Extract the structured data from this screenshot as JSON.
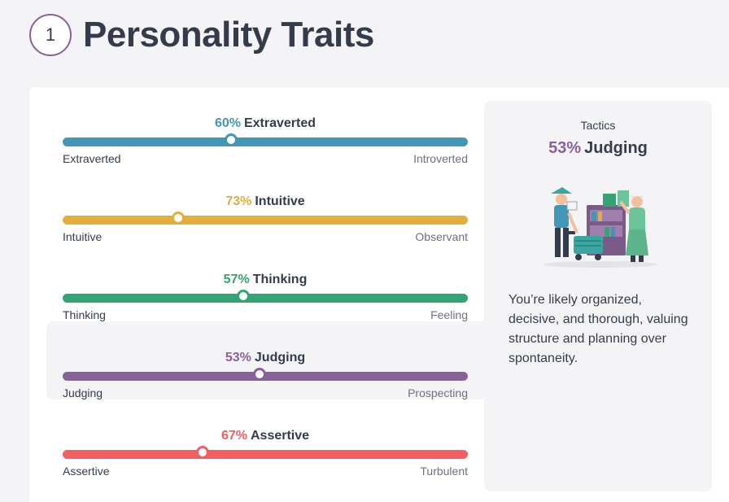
{
  "header": {
    "step": "1",
    "title": "Personality Traits"
  },
  "traits": [
    {
      "percent_label": "60%",
      "name": "Extraverted",
      "left": "Extraverted",
      "right": "Introverted",
      "color": "#4298b4",
      "knob_fraction": 0.415,
      "active": false
    },
    {
      "percent_label": "73%",
      "name": "Intuitive",
      "left": "Intuitive",
      "right": "Observant",
      "color": "#e4ae3a",
      "knob_fraction": 0.285,
      "active": false
    },
    {
      "percent_label": "57%",
      "name": "Thinking",
      "left": "Thinking",
      "right": "Feeling",
      "color": "#33a474",
      "knob_fraction": 0.445,
      "active": false
    },
    {
      "percent_label": "53%",
      "name": "Judging",
      "left": "Judging",
      "right": "Prospecting",
      "color": "#88619a",
      "knob_fraction": 0.485,
      "active": true
    },
    {
      "percent_label": "67%",
      "name": "Assertive",
      "left": "Assertive",
      "right": "Turbulent",
      "color": "#f25e62",
      "knob_fraction": 0.345,
      "active": false
    }
  ],
  "panel": {
    "category": "Tactics",
    "percent_label": "53%",
    "trait": "Judging",
    "color": "#88619a",
    "illustration_icon": "judging-illustration",
    "description": "You’re likely organized, decisive, and thorough, valuing structure and planning over spontaneity."
  }
}
